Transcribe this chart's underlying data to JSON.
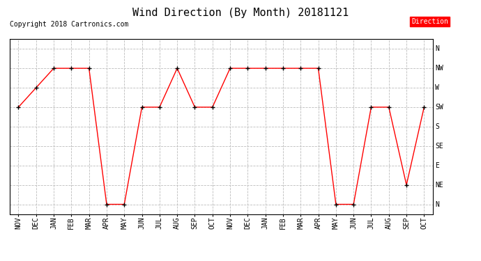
{
  "title": "Wind Direction (By Month) 20181121",
  "copyright": "Copyright 2018 Cartronics.com",
  "legend_label": "Direction",
  "legend_color": "#ff0000",
  "legend_text_color": "#ffffff",
  "x_labels": [
    "NOV",
    "DEC",
    "JAN",
    "FEB",
    "MAR",
    "APR",
    "MAY",
    "JUN",
    "JUL",
    "AUG",
    "SEP",
    "OCT",
    "NOV",
    "DEC",
    "JAN",
    "FEB",
    "MAR",
    "APR",
    "MAY",
    "JUN",
    "JUL",
    "AUG",
    "SEP",
    "OCT"
  ],
  "y_labels": [
    "N",
    "NE",
    "E",
    "SE",
    "S",
    "SW",
    "W",
    "NW",
    "N"
  ],
  "y_values": [
    0,
    1,
    2,
    3,
    4,
    5,
    6,
    7,
    8
  ],
  "data_values": [
    5,
    6,
    7,
    7,
    7,
    0,
    0,
    5,
    5,
    7,
    5,
    5,
    7,
    7,
    7,
    7,
    7,
    7,
    0,
    0,
    5,
    5,
    1,
    5
  ],
  "line_color": "#ff0000",
  "marker": "+",
  "marker_color": "#000000",
  "marker_size": 5,
  "grid_color": "#bbbbbb",
  "grid_style": "--",
  "bg_color": "#ffffff",
  "title_fontsize": 11,
  "tick_fontsize": 7,
  "copyright_fontsize": 7
}
